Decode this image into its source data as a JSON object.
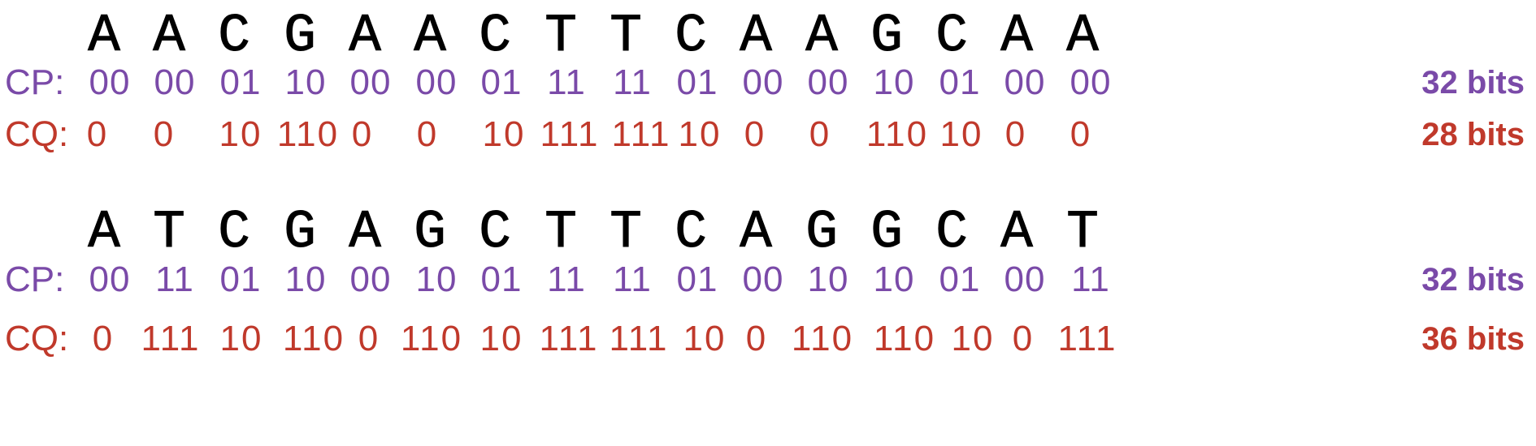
{
  "colors": {
    "cp": "#7a4aa8",
    "cq": "#c0392b",
    "sequence": "#000000"
  },
  "blocks": [
    {
      "sequence": [
        "A",
        "A",
        "C",
        "G",
        "A",
        "A",
        "C",
        "T",
        "T",
        "C",
        "A",
        "A",
        "G",
        "C",
        "A",
        "A"
      ],
      "cp": {
        "label": "CP:",
        "codes": [
          "00",
          "00",
          "01",
          "10",
          "00",
          "00",
          "01",
          "11",
          "11",
          "01",
          "00",
          "00",
          "10",
          "01",
          "00",
          "00"
        ],
        "total": "32 bits"
      },
      "cq": {
        "label": "CQ:",
        "codes": [
          "0",
          "0",
          "10",
          "110",
          "0",
          "0",
          "10",
          "111",
          "111",
          "10",
          "0",
          "0",
          "110",
          "10",
          "0",
          "0"
        ],
        "total": "28 bits"
      }
    },
    {
      "sequence": [
        "A",
        "T",
        "C",
        "G",
        "A",
        "G",
        "C",
        "T",
        "T",
        "C",
        "A",
        "G",
        "G",
        "C",
        "A",
        "T"
      ],
      "cp": {
        "label": "CP:",
        "codes": [
          "00",
          "11",
          "01",
          "10",
          "00",
          "10",
          "01",
          "11",
          "11",
          "01",
          "00",
          "10",
          "10",
          "01",
          "00",
          "11"
        ],
        "total": "32 bits"
      },
      "cq": {
        "label": "CQ:",
        "codes": [
          "0",
          "111",
          "10",
          "110",
          "0",
          "110",
          "10",
          "111",
          "111",
          "10",
          "0",
          "110",
          "110",
          "10",
          "0",
          "111"
        ],
        "total": "36 bits"
      }
    }
  ]
}
